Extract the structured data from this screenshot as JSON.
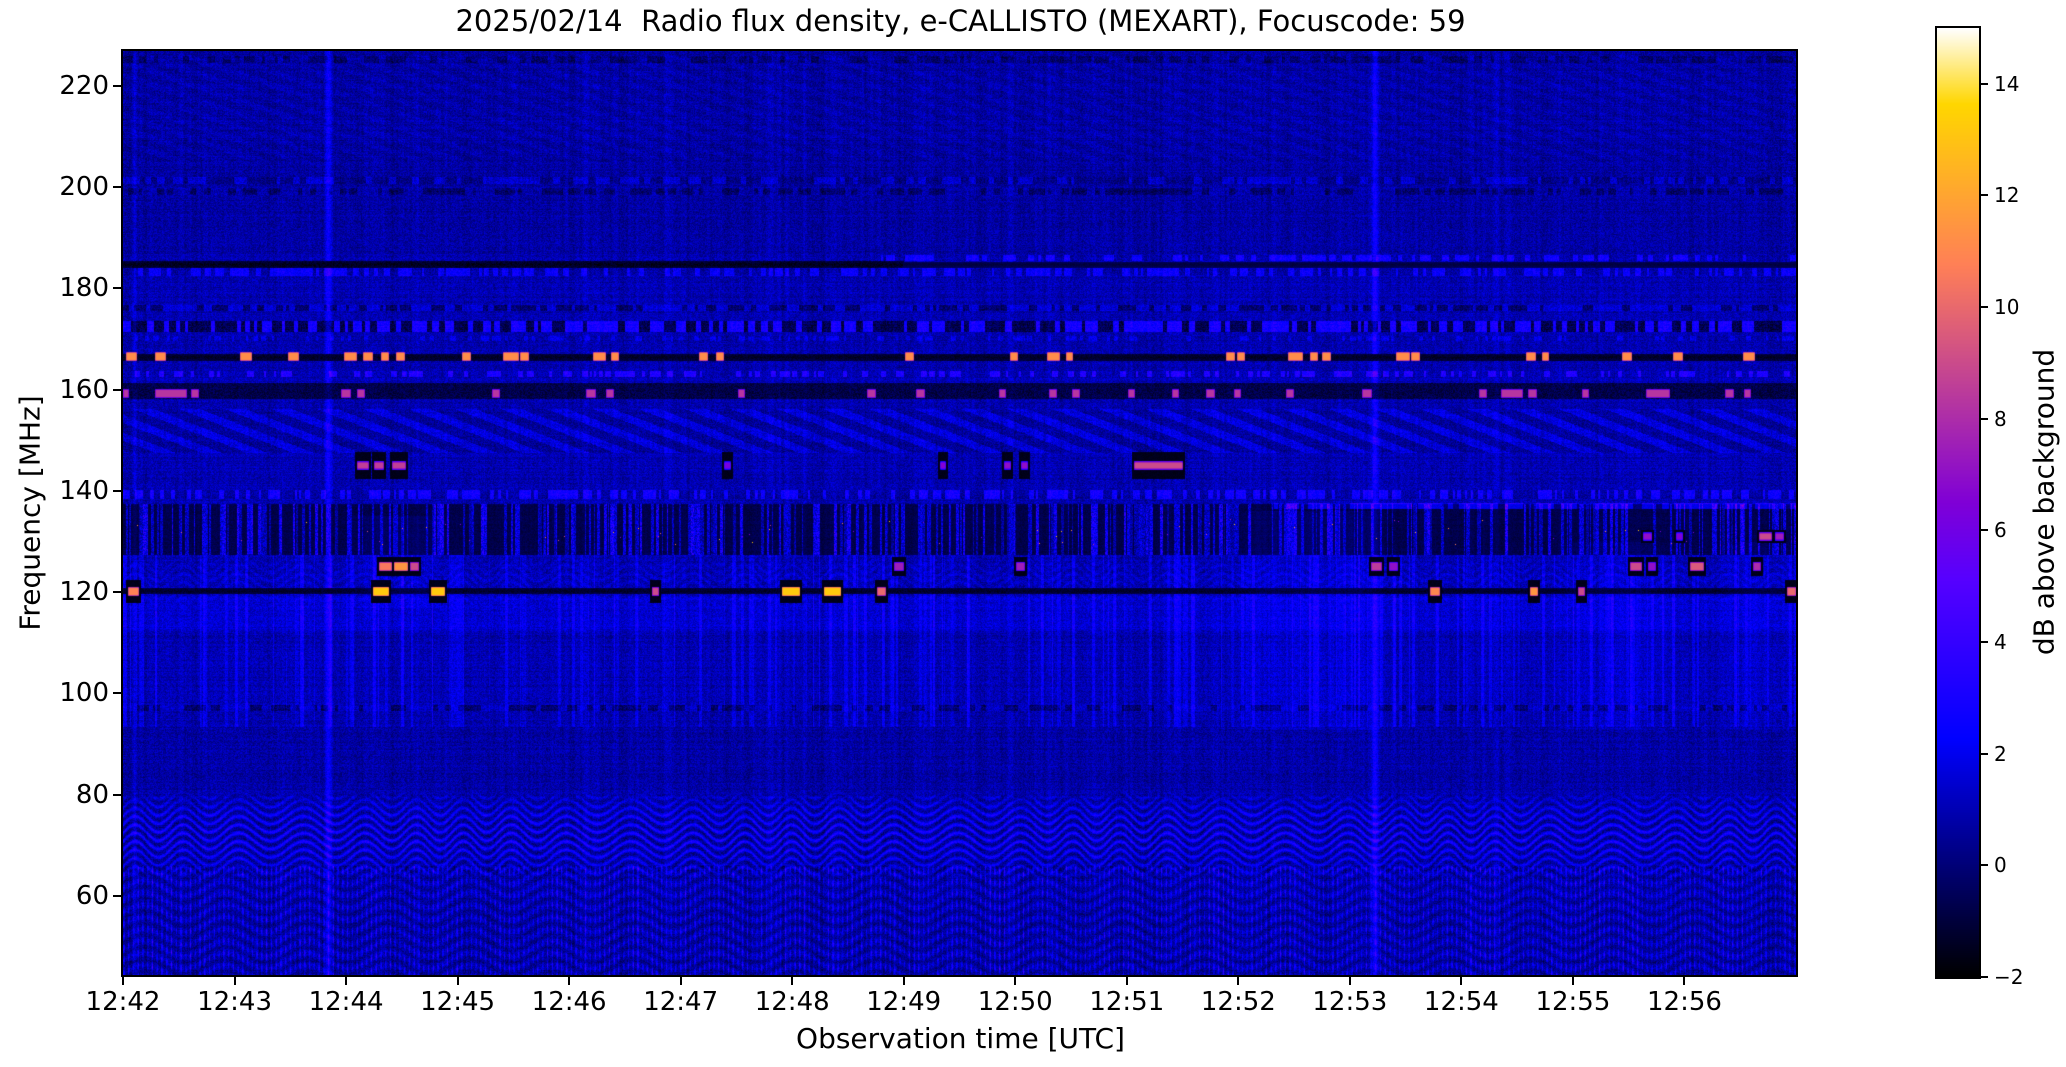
{
  "chart_data": {
    "type": "heatmap",
    "subtype": "radio-spectrogram",
    "title": "2025/02/14  Radio flux density, e-CALLISTO (MEXART), Focuscode: 59",
    "xlabel": "Observation time [UTC]",
    "ylabel": "Frequency [MHz]",
    "x_ticks": [
      "12:42",
      "12:43",
      "12:44",
      "12:45",
      "12:46",
      "12:47",
      "12:48",
      "12:49",
      "12:50",
      "12:51",
      "12:52",
      "12:53",
      "12:54",
      "12:55",
      "12:56"
    ],
    "x_tick_interval_min": 1,
    "time_span_min": 15.0,
    "y_ticks": [
      220,
      200,
      180,
      160,
      140,
      120,
      100,
      80,
      60
    ],
    "freq_range": [
      44.4,
      226.9
    ],
    "grid": false,
    "colorbar": {
      "label": "dB above background",
      "ticks": [
        14,
        12,
        10,
        8,
        6,
        4,
        2,
        0,
        -2
      ],
      "tick_labels": [
        "14",
        "12",
        "10",
        "8",
        "6",
        "4",
        "2",
        "0",
        "−2"
      ],
      "range": [
        -2,
        15
      ],
      "colormap": "gnuplot2"
    },
    "background": {
      "base_db": 0.45,
      "column_noise_db": 0.95,
      "pixel_noise_db": 1.5
    },
    "bands": [
      {
        "kind": "comb",
        "f_range": [
          44.0,
          66.0
        ],
        "amp": 1.6
      },
      {
        "kind": "waves",
        "f_range": [
          63.5,
          80.5
        ],
        "amp": 2.1
      },
      {
        "kind": "calm",
        "f_range": [
          80.5,
          93.5
        ],
        "add": -0.2
      },
      {
        "kind": "dot_line",
        "f": 97.2,
        "hw": 0.6,
        "on": -1.15,
        "off": 0.3,
        "p_on": 0.5,
        "dash": [
          3,
          7
        ]
      },
      {
        "kind": "streaks",
        "f_range": [
          93.5,
          127.4
        ],
        "amp": 1.05
      },
      {
        "kind": "waves",
        "f_range": [
          117.5,
          127.4
        ],
        "amp": 0.55
      },
      {
        "kind": "calm",
        "f_range": [
          112.5,
          119.4
        ],
        "add": 0.5
      },
      {
        "kind": "dark_line",
        "f": 120.3,
        "hw": 0.55,
        "depth": 1.25
      },
      {
        "kind": "dark_noisy",
        "f_range": [
          127.4,
          137.6
        ],
        "depth": 1.15,
        "speck": [
          129.5,
          134.5
        ]
      },
      {
        "kind": "dot_line",
        "f": 139.4,
        "hw": 0.8,
        "on": 1.7,
        "off": -0.35,
        "p_on": 0.5,
        "dash": [
          2,
          5
        ]
      },
      {
        "kind": "dot_line",
        "f": 137.2,
        "hw": 0.6,
        "on": 2.6,
        "off": 0.7,
        "p_on": 0.7,
        "dash": [
          4,
          9
        ],
        "t_range": [
          10.3,
          15.1
        ]
      },
      {
        "kind": "hatch",
        "f_range": [
          147.6,
          156.2
        ],
        "amp": 1.0,
        "period": 46,
        "slope": 2.6
      },
      {
        "kind": "dark_band",
        "f_range": [
          158.2,
          161.4
        ],
        "depth": 1.5
      },
      {
        "kind": "dot_line",
        "f": 163.2,
        "hw": 0.6,
        "on": 2.2,
        "off": -0.1,
        "p_on": 0.4,
        "dash": [
          2,
          6
        ]
      },
      {
        "kind": "dark_line",
        "f": 166.5,
        "hw": 0.7,
        "depth": 1.3
      },
      {
        "kind": "dot_line",
        "f": 170.2,
        "hw": 0.5,
        "on": 1.0,
        "off": -0.15,
        "p_on": 0.3,
        "dash": [
          2,
          5
        ]
      },
      {
        "kind": "dot_line",
        "f": 172.6,
        "hw": 1.1,
        "on": 2.0,
        "off": -1.5,
        "p_on": 0.5,
        "dash": [
          3,
          7
        ]
      },
      {
        "kind": "dot_line",
        "f": 176.3,
        "hw": 0.6,
        "on": 0.6,
        "off": -1.1,
        "p_on": 0.5,
        "dash": [
          3,
          8
        ]
      },
      {
        "kind": "dot_line",
        "f": 183.4,
        "hw": 0.8,
        "on": 1.5,
        "off": -0.2,
        "p_on": 0.45,
        "dash": [
          2,
          6
        ]
      },
      {
        "kind": "dark_line",
        "f": 184.8,
        "hw": 0.7,
        "depth": 1.5,
        "t_range": [
          0,
          7.0
        ]
      },
      {
        "kind": "dark_line",
        "f": 184.8,
        "hw": 0.6,
        "depth": 0.7,
        "t_range": [
          7.0,
          15.1
        ]
      },
      {
        "kind": "dot_line",
        "f": 186.1,
        "hw": 0.6,
        "on": 1.8,
        "off": -0.1,
        "p_on": 0.5,
        "dash": [
          3,
          7
        ],
        "t_range": [
          6.8,
          15.1
        ]
      },
      {
        "kind": "calm",
        "f_range": [
          187.0,
          226.9
        ],
        "add": -0.25
      },
      {
        "kind": "dot_line",
        "f": 199.3,
        "hw": 0.7,
        "on": -0.9,
        "off": 0.15,
        "p_on": 0.5,
        "dash": [
          3,
          8
        ]
      },
      {
        "kind": "dot_line",
        "f": 201.4,
        "hw": 0.7,
        "on": 0.8,
        "off": -0.45,
        "p_on": 0.45,
        "dash": [
          3,
          8
        ]
      },
      {
        "kind": "hatch",
        "f_range": [
          205.0,
          226.5
        ],
        "amp": 0.3,
        "period": 40,
        "slope": 3.0
      },
      {
        "kind": "dot_line",
        "f": 225.4,
        "hw": 0.7,
        "on": -0.8,
        "off": 0.1,
        "p_on": 0.5,
        "dash": [
          3,
          8
        ]
      }
    ],
    "burst_groups": [
      {
        "name": "rfi-166MHz-orange",
        "f": 166.6,
        "h": 1.2,
        "v": 11.2,
        "events": [
          {
            "t": 0.04,
            "d": 0.07
          },
          {
            "t": 0.3,
            "d": 0.07
          },
          {
            "t": 1.06,
            "d": 0.08
          },
          {
            "t": 1.49,
            "d": 0.07
          },
          {
            "t": 1.99,
            "d": 0.09
          },
          {
            "t": 2.16,
            "d": 0.06
          },
          {
            "t": 2.32,
            "d": 0.05
          },
          {
            "t": 2.46,
            "d": 0.05
          },
          {
            "t": 3.05,
            "d": 0.05
          },
          {
            "t": 3.42,
            "d": 0.11
          },
          {
            "t": 3.57,
            "d": 0.05
          },
          {
            "t": 4.22,
            "d": 0.09
          },
          {
            "t": 4.38,
            "d": 0.05
          },
          {
            "t": 5.17,
            "d": 0.06
          },
          {
            "t": 5.33,
            "d": 0.04
          },
          {
            "t": 7.02,
            "d": 0.05
          },
          {
            "t": 7.96,
            "d": 0.05
          },
          {
            "t": 8.29,
            "d": 0.09
          },
          {
            "t": 8.46,
            "d": 0.04
          },
          {
            "t": 9.9,
            "d": 0.05
          },
          {
            "t": 10.0,
            "d": 0.04
          },
          {
            "t": 10.45,
            "d": 0.06
          },
          {
            "t": 10.52,
            "d": 0.04
          },
          {
            "t": 10.65,
            "d": 0.05
          },
          {
            "t": 10.76,
            "d": 0.05
          },
          {
            "t": 11.42,
            "d": 0.1
          },
          {
            "t": 11.56,
            "d": 0.05
          },
          {
            "t": 12.59,
            "d": 0.06
          },
          {
            "t": 12.73,
            "d": 0.04
          },
          {
            "t": 13.45,
            "d": 0.06
          },
          {
            "t": 13.91,
            "d": 0.06
          },
          {
            "t": 14.53,
            "d": 0.08
          }
        ]
      },
      {
        "name": "rfi-160MHz-magenta",
        "f": 159.4,
        "h": 1.1,
        "v": 8.3,
        "events": [
          {
            "t": 0.01,
            "d": 0.03
          },
          {
            "t": 0.3,
            "d": 0.26
          },
          {
            "t": 0.62,
            "d": 0.04
          },
          {
            "t": 1.96,
            "d": 0.07
          },
          {
            "t": 2.11,
            "d": 0.04
          },
          {
            "t": 3.32,
            "d": 0.04
          },
          {
            "t": 4.16,
            "d": 0.06
          },
          {
            "t": 4.34,
            "d": 0.04
          },
          {
            "t": 5.52,
            "d": 0.04
          },
          {
            "t": 6.68,
            "d": 0.05
          },
          {
            "t": 7.12,
            "d": 0.05
          },
          {
            "t": 7.86,
            "d": 0.04
          },
          {
            "t": 8.31,
            "d": 0.05
          },
          {
            "t": 8.52,
            "d": 0.04
          },
          {
            "t": 9.02,
            "d": 0.04
          },
          {
            "t": 9.41,
            "d": 0.04
          },
          {
            "t": 9.72,
            "d": 0.05
          },
          {
            "t": 9.97,
            "d": 0.04
          },
          {
            "t": 10.44,
            "d": 0.04
          },
          {
            "t": 11.12,
            "d": 0.06
          },
          {
            "t": 12.17,
            "d": 0.04
          },
          {
            "t": 12.36,
            "d": 0.17
          },
          {
            "t": 12.61,
            "d": 0.05
          },
          {
            "t": 13.09,
            "d": 0.04
          },
          {
            "t": 13.66,
            "d": 0.19
          },
          {
            "t": 14.37,
            "d": 0.06
          },
          {
            "t": 14.54,
            "d": 0.04
          }
        ]
      },
      {
        "name": "rfi-145MHz-magenta",
        "f": 145.1,
        "h": 1.0,
        "v": 8.6,
        "blackout_mhz": 5.2,
        "events": [
          {
            "t": 2.11,
            "d": 0.08
          },
          {
            "t": 2.26,
            "d": 0.06
          },
          {
            "t": 2.42,
            "d": 0.1
          },
          {
            "t": 5.4,
            "d": 0.03,
            "v": 6.2
          },
          {
            "t": 7.33,
            "d": 0.03,
            "v": 6.6
          },
          {
            "t": 7.91,
            "d": 0.03,
            "v": 7.0
          },
          {
            "t": 8.06,
            "d": 0.04,
            "v": 7.0
          },
          {
            "t": 9.07,
            "d": 0.42,
            "v": 9.0
          }
        ]
      },
      {
        "name": "rfi-131MHz",
        "f": 131.2,
        "h": 1.0,
        "v": 8.0,
        "blackout_mhz": 2.5,
        "events": [
          {
            "t": 13.64,
            "d": 0.05,
            "v": 7.0
          },
          {
            "t": 13.93,
            "d": 0.04,
            "v": 6.5
          },
          {
            "t": 14.68,
            "d": 0.09,
            "v": 9.0
          },
          {
            "t": 14.82,
            "d": 0.05,
            "v": 7.5
          }
        ]
      },
      {
        "name": "rfi-125MHz-orange",
        "f": 125.2,
        "h": 1.2,
        "v": 9.8,
        "blackout_mhz": 3.4,
        "events": [
          {
            "t": 2.3,
            "d": 0.09,
            "v": 10.5
          },
          {
            "t": 2.44,
            "d": 0.1,
            "v": 11.5
          },
          {
            "t": 2.58,
            "d": 0.06,
            "v": 9.0
          },
          {
            "t": 6.92,
            "d": 0.06,
            "v": 7.5
          },
          {
            "t": 8.02,
            "d": 0.05,
            "v": 7.5
          },
          {
            "t": 11.2,
            "d": 0.07,
            "v": 8.5
          },
          {
            "t": 11.36,
            "d": 0.05,
            "v": 7.0
          },
          {
            "t": 13.52,
            "d": 0.08,
            "v": 9.0
          },
          {
            "t": 13.68,
            "d": 0.05,
            "v": 7.0
          },
          {
            "t": 14.06,
            "d": 0.1,
            "v": 9.5
          },
          {
            "t": 14.62,
            "d": 0.05,
            "v": 8.0
          }
        ]
      },
      {
        "name": "rfi-120MHz-yellow",
        "f": 120.3,
        "h": 1.2,
        "v": 13.2,
        "blackout_mhz": 4.2,
        "events": [
          {
            "t": 0.05,
            "d": 0.08,
            "v": 10.8
          },
          {
            "t": 2.25,
            "d": 0.12
          },
          {
            "t": 2.77,
            "d": 0.1
          },
          {
            "t": 4.75,
            "d": 0.04,
            "v": 9.0
          },
          {
            "t": 5.92,
            "d": 0.13
          },
          {
            "t": 6.29,
            "d": 0.13
          },
          {
            "t": 6.77,
            "d": 0.05,
            "v": 10.0
          },
          {
            "t": 11.73,
            "d": 0.06,
            "v": 11.0
          },
          {
            "t": 12.62,
            "d": 0.05,
            "v": 11.5
          },
          {
            "t": 13.05,
            "d": 0.04,
            "v": 9.0
          },
          {
            "t": 14.93,
            "d": 0.05,
            "v": 10.0
          }
        ]
      }
    ],
    "vertical_streaks": [
      {
        "t": 1.84,
        "w": 2.2,
        "amp": 1.8
      },
      {
        "t": 11.22,
        "w": 2.2,
        "amp": 1.9
      },
      {
        "t": 0.1,
        "w": 1.4,
        "amp": 0.7
      },
      {
        "t": 6.1,
        "w": 1.2,
        "amp": 0.5
      },
      {
        "t": 12.32,
        "w": 1.4,
        "amp": 0.55
      }
    ],
    "patches": [
      {
        "t0": 10.0,
        "t1": 11.35,
        "f0": 93,
        "f1": 136,
        "amp": 0.55
      },
      {
        "t0": 12.85,
        "t1": 13.85,
        "f0": 93,
        "f1": 130,
        "amp": 0.45
      },
      {
        "t0": 14.25,
        "t1": 15.05,
        "f0": 93,
        "f1": 130,
        "amp": 0.45
      },
      {
        "t0": 2.0,
        "t1": 2.9,
        "f0": 117,
        "f1": 135,
        "amp": 0.5
      }
    ]
  }
}
